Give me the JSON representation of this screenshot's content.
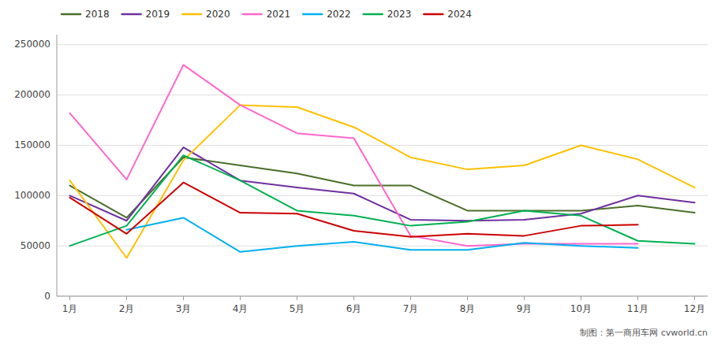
{
  "chart_data": {
    "type": "line",
    "categories": [
      "1月",
      "2月",
      "3月",
      "4月",
      "5月",
      "6月",
      "7月",
      "8月",
      "9月",
      "10月",
      "11月",
      "12月"
    ],
    "series": [
      {
        "name": "2018",
        "color": "#4a6e2a",
        "values": [
          110000,
          78000,
          138000,
          130000,
          122000,
          110000,
          110000,
          85000,
          85000,
          85000,
          90000,
          83000
        ]
      },
      {
        "name": "2019",
        "color": "#7030a0",
        "values": [
          100000,
          75000,
          148000,
          115000,
          108000,
          102000,
          76000,
          75000,
          76000,
          82000,
          100000,
          93000
        ]
      },
      {
        "name": "2020",
        "color": "#ffc000",
        "values": [
          115000,
          38000,
          135000,
          190000,
          188000,
          168000,
          138000,
          126000,
          130000,
          150000,
          136000,
          108000
        ]
      },
      {
        "name": "2021",
        "color": "#ff66cc",
        "values": [
          182000,
          116000,
          230000,
          190000,
          162000,
          157000,
          60000,
          50000,
          52000,
          52000,
          52000,
          null
        ]
      },
      {
        "name": "2022",
        "color": "#00b0f0",
        "values": [
          null,
          66000,
          78000,
          44000,
          50000,
          54000,
          46000,
          46000,
          53000,
          50000,
          48000,
          null
        ]
      },
      {
        "name": "2023",
        "color": "#00b050",
        "values": [
          50000,
          70000,
          140000,
          115000,
          85000,
          80000,
          70000,
          74000,
          85000,
          80000,
          55000,
          52000
        ]
      },
      {
        "name": "2024",
        "color": "#cc0000",
        "values": [
          98000,
          62000,
          113000,
          83000,
          82000,
          65000,
          59000,
          62000,
          60000,
          70000,
          71000,
          null
        ]
      }
    ],
    "ylim": [
      0,
      260000
    ],
    "yticks": [
      0,
      50000,
      100000,
      150000,
      200000,
      250000
    ],
    "grid": true,
    "legend": "top",
    "annotations": [
      "制图：第一商用车网 cvworld.cn"
    ]
  }
}
